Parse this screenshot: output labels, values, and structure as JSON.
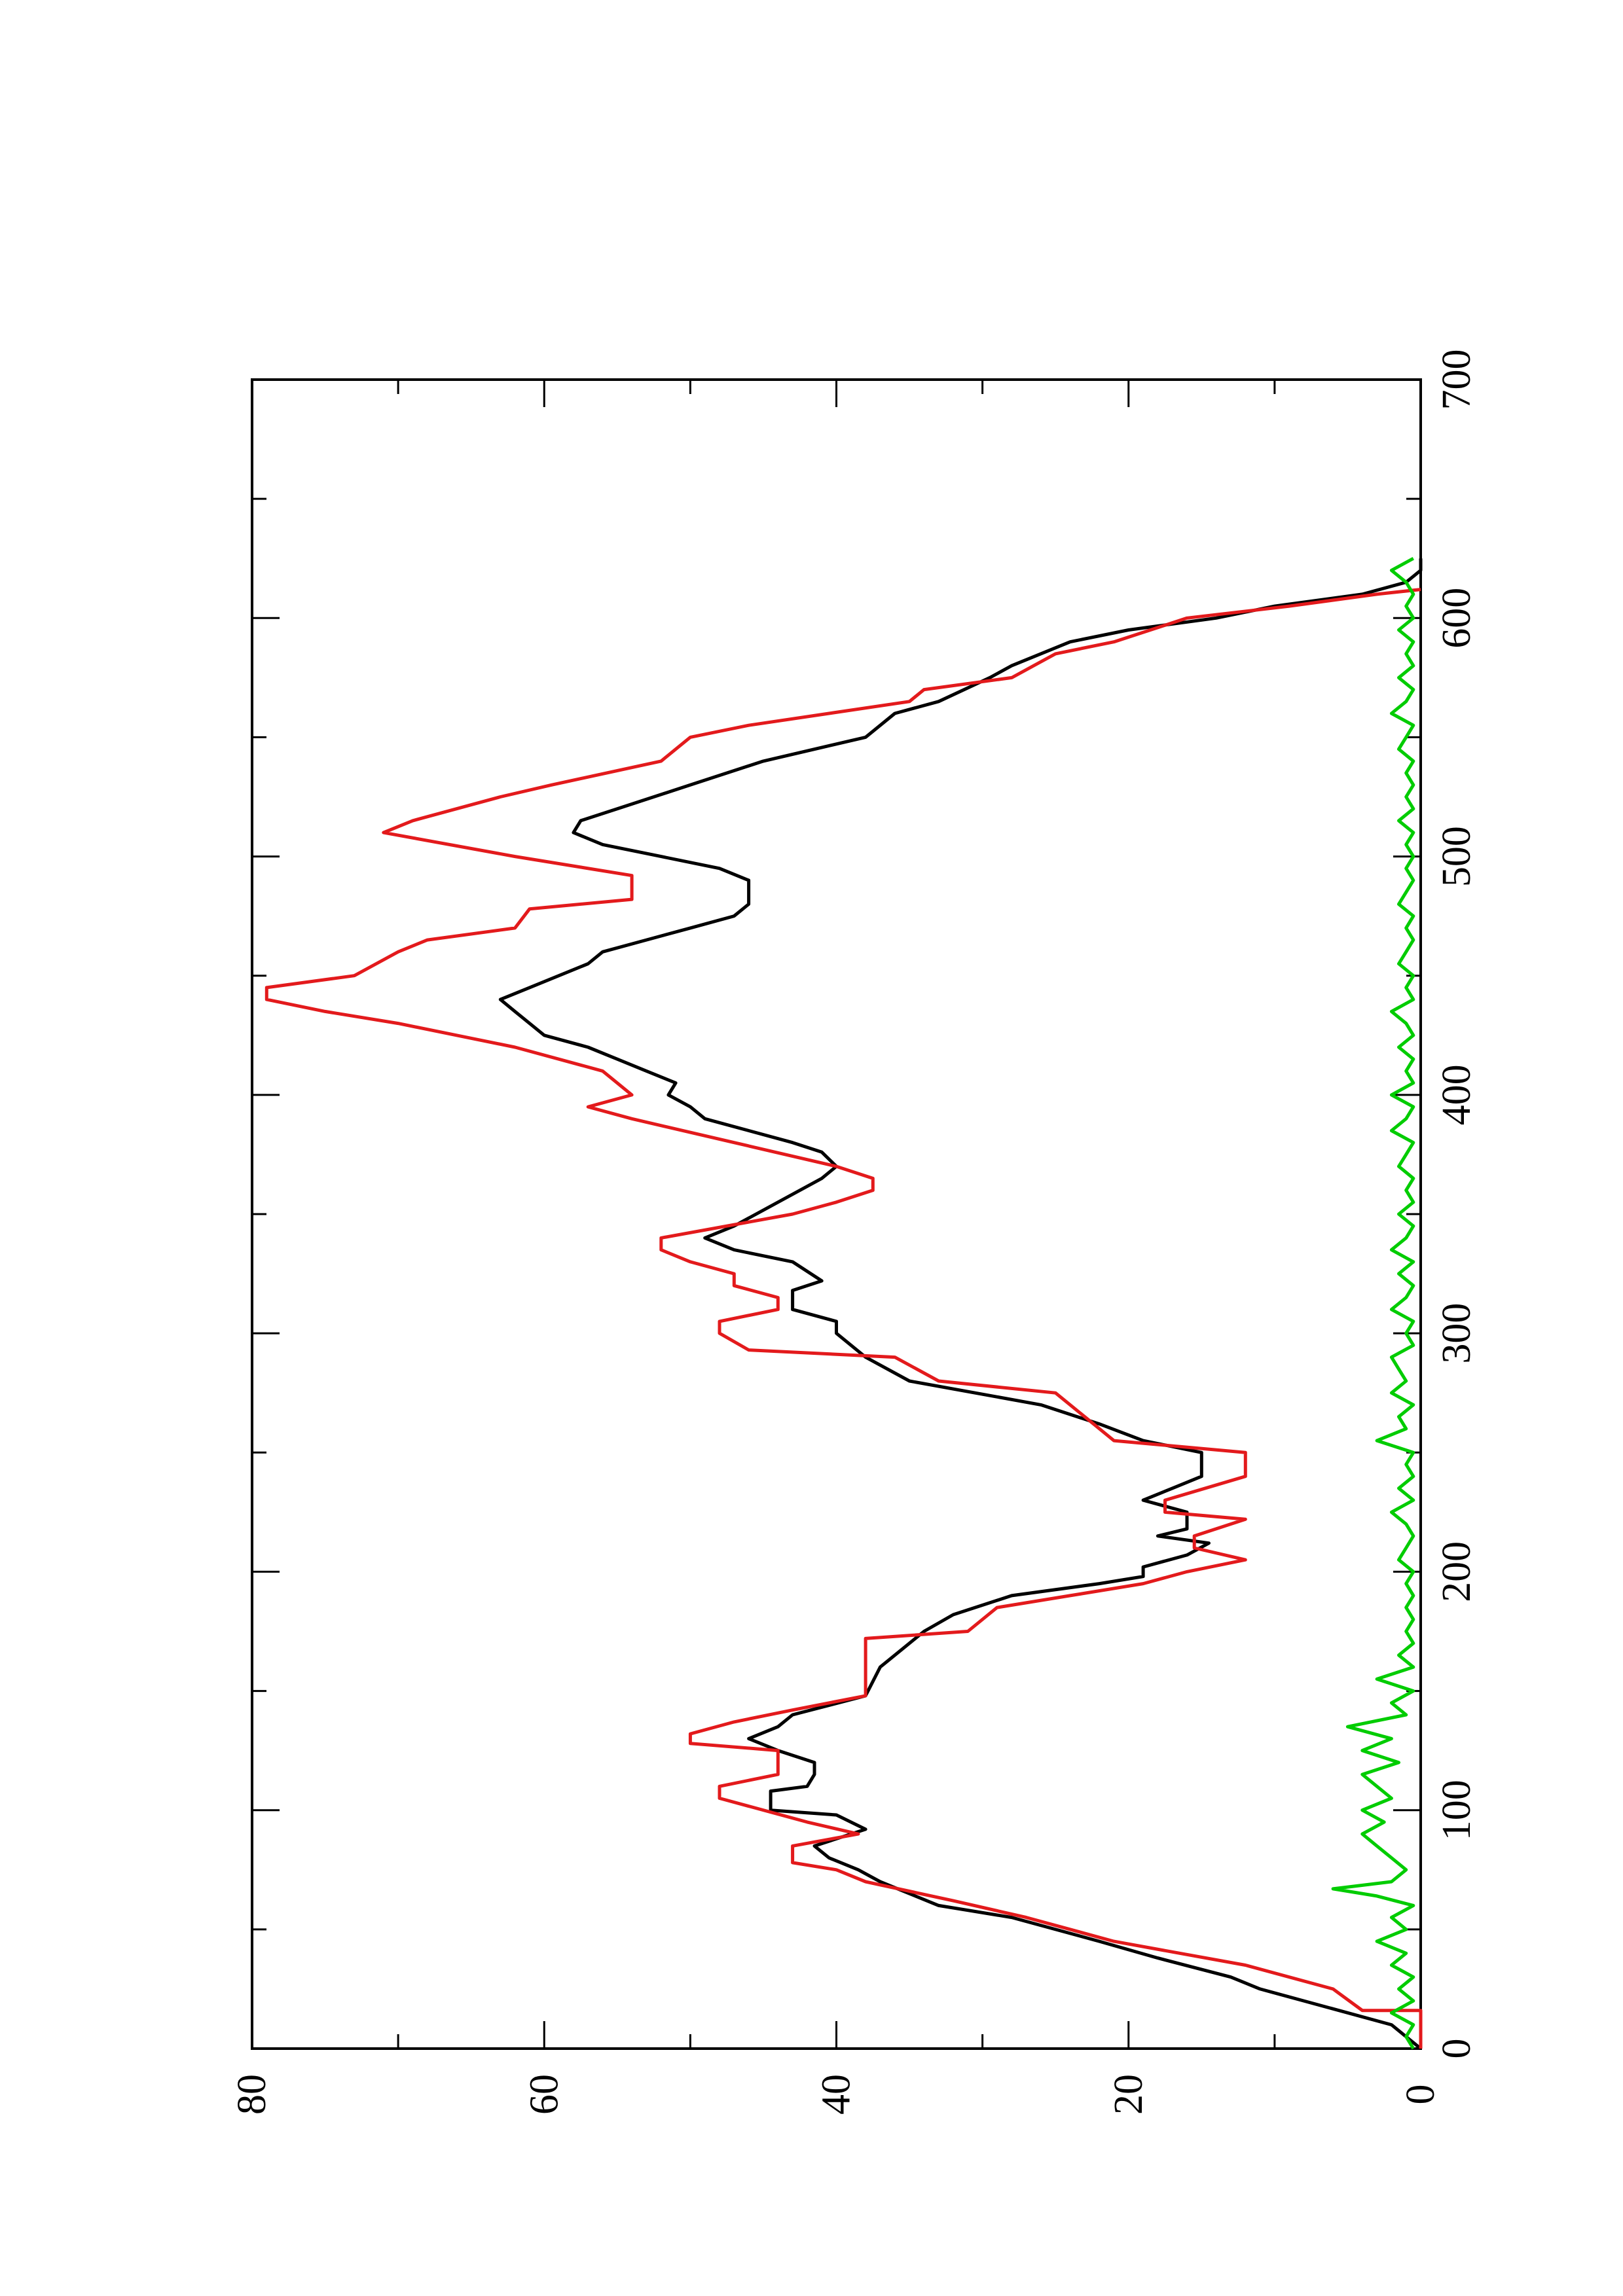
{
  "chart_data": {
    "type": "line",
    "orientation": "rotated 90° counter-clockwise (x axis vertical, y axis horizontal)",
    "title": "",
    "xlabel": "",
    "ylabel": "",
    "xlim": [
      0,
      700
    ],
    "ylim": [
      0,
      80
    ],
    "x_ticks": [
      0,
      100,
      200,
      300,
      400,
      500,
      600,
      700
    ],
    "y_ticks": [
      0,
      20,
      40,
      60,
      80
    ],
    "grid": false,
    "legend": "none",
    "series": [
      {
        "color": "#000000",
        "points": [
          [
            0,
            0
          ],
          [
            10,
            2
          ],
          [
            20,
            8
          ],
          [
            25,
            11
          ],
          [
            30,
            13
          ],
          [
            38,
            18
          ],
          [
            45,
            22
          ],
          [
            55,
            28
          ],
          [
            60,
            33
          ],
          [
            65,
            35
          ],
          [
            70,
            37
          ],
          [
            75,
            38.5
          ],
          [
            80,
            40.5
          ],
          [
            85,
            41.5
          ],
          [
            92,
            38
          ],
          [
            98,
            40
          ],
          [
            100,
            44.5
          ],
          [
            108,
            44.5
          ],
          [
            110,
            42
          ],
          [
            115,
            41.5
          ],
          [
            120,
            41.5
          ],
          [
            125,
            44
          ],
          [
            130,
            46
          ],
          [
            135,
            44
          ],
          [
            140,
            43
          ],
          [
            148,
            38
          ],
          [
            160,
            37
          ],
          [
            170,
            35
          ],
          [
            175,
            34
          ],
          [
            182,
            32
          ],
          [
            190,
            28
          ],
          [
            195,
            22
          ],
          [
            198,
            19
          ],
          [
            202,
            19
          ],
          [
            207,
            16
          ],
          [
            212,
            14.5
          ],
          [
            215,
            18
          ],
          [
            218,
            16
          ],
          [
            225,
            16
          ],
          [
            230,
            19
          ],
          [
            235,
            17
          ],
          [
            240,
            15
          ],
          [
            250,
            15
          ],
          [
            255,
            19
          ],
          [
            262,
            22
          ],
          [
            270,
            26
          ],
          [
            280,
            35
          ],
          [
            290,
            38
          ],
          [
            300,
            40
          ],
          [
            305,
            40
          ],
          [
            310,
            43
          ],
          [
            318,
            43
          ],
          [
            322,
            41
          ],
          [
            330,
            43
          ],
          [
            335,
            47
          ],
          [
            340,
            49
          ],
          [
            345,
            47
          ],
          [
            355,
            44
          ],
          [
            365,
            41
          ],
          [
            370,
            40
          ],
          [
            376,
            41
          ],
          [
            380,
            43
          ],
          [
            390,
            49
          ],
          [
            395,
            50
          ],
          [
            400,
            51.5
          ],
          [
            405,
            51
          ],
          [
            410,
            53
          ],
          [
            415,
            55
          ],
          [
            420,
            57
          ],
          [
            425,
            60
          ],
          [
            430,
            61
          ],
          [
            435,
            62
          ],
          [
            440,
            63
          ],
          [
            445,
            61
          ],
          [
            450,
            59
          ],
          [
            455,
            57
          ],
          [
            460,
            56
          ],
          [
            465,
            53
          ],
          [
            470,
            50
          ],
          [
            475,
            47
          ],
          [
            480,
            46
          ],
          [
            490,
            46
          ],
          [
            495,
            48
          ],
          [
            500,
            52
          ],
          [
            505,
            56
          ],
          [
            510,
            58
          ],
          [
            515,
            57.5
          ],
          [
            520,
            55
          ],
          [
            530,
            50
          ],
          [
            540,
            45
          ],
          [
            550,
            38
          ],
          [
            560,
            36
          ],
          [
            565,
            33
          ],
          [
            575,
            29.5
          ],
          [
            580,
            28
          ],
          [
            590,
            24
          ],
          [
            595,
            20
          ],
          [
            600,
            14
          ],
          [
            605,
            10
          ],
          [
            610,
            4
          ],
          [
            615,
            1
          ],
          [
            620,
            0
          ],
          [
            625,
            0
          ]
        ]
      },
      {
        "color": "#e31a1c",
        "points": [
          [
            0,
            0
          ],
          [
            16,
            0
          ],
          [
            16,
            4
          ],
          [
            25,
            6
          ],
          [
            35,
            12
          ],
          [
            45,
            21
          ],
          [
            55,
            27
          ],
          [
            62,
            32
          ],
          [
            70,
            38
          ],
          [
            75,
            40
          ],
          [
            78,
            43
          ],
          [
            85,
            43
          ],
          [
            90,
            38.5
          ],
          [
            95,
            42
          ],
          [
            105,
            48
          ],
          [
            110,
            48
          ],
          [
            115,
            44
          ],
          [
            125,
            44
          ],
          [
            128,
            50
          ],
          [
            132,
            50
          ],
          [
            137,
            47
          ],
          [
            142,
            43
          ],
          [
            148,
            38
          ],
          [
            172,
            38
          ],
          [
            175,
            31
          ],
          [
            185,
            29
          ],
          [
            190,
            24
          ],
          [
            195,
            19
          ],
          [
            200,
            16
          ],
          [
            205,
            12
          ],
          [
            210,
            15.5
          ],
          [
            215,
            15.5
          ],
          [
            222,
            12
          ],
          [
            225,
            17.5
          ],
          [
            230,
            17.5
          ],
          [
            240,
            12
          ],
          [
            250,
            12
          ],
          [
            255,
            21
          ],
          [
            265,
            23
          ],
          [
            275,
            25
          ],
          [
            280,
            33
          ],
          [
            290,
            36
          ],
          [
            293,
            46
          ],
          [
            300,
            48
          ],
          [
            305,
            48
          ],
          [
            310,
            44
          ],
          [
            315,
            44
          ],
          [
            320,
            47
          ],
          [
            325,
            47
          ],
          [
            330,
            50
          ],
          [
            335,
            52
          ],
          [
            340,
            52
          ],
          [
            350,
            43
          ],
          [
            355,
            40
          ],
          [
            360,
            37.5
          ],
          [
            365,
            37.5
          ],
          [
            370,
            40
          ],
          [
            380,
            47
          ],
          [
            390,
            54
          ],
          [
            395,
            57
          ],
          [
            400,
            54
          ],
          [
            410,
            56
          ],
          [
            420,
            62
          ],
          [
            425,
            66
          ],
          [
            430,
            70
          ],
          [
            435,
            75
          ],
          [
            440,
            79
          ],
          [
            445,
            79
          ],
          [
            450,
            73
          ],
          [
            460,
            70
          ],
          [
            465,
            68
          ],
          [
            470,
            62
          ],
          [
            478,
            61
          ],
          [
            482,
            54
          ],
          [
            492,
            54
          ],
          [
            500,
            62
          ],
          [
            510,
            71
          ],
          [
            515,
            69
          ],
          [
            520,
            66
          ],
          [
            525,
            63
          ],
          [
            530,
            59.5
          ],
          [
            540,
            52
          ],
          [
            550,
            50
          ],
          [
            555,
            46
          ],
          [
            565,
            35
          ],
          [
            570,
            34
          ],
          [
            575,
            28
          ],
          [
            585,
            25
          ],
          [
            590,
            21
          ],
          [
            600,
            16
          ],
          [
            605,
            9
          ],
          [
            610,
            3
          ],
          [
            612,
            0
          ]
        ]
      },
      {
        "color": "#00cc00",
        "points": [
          [
            0,
            0.5
          ],
          [
            5,
            1
          ],
          [
            10,
            0.5
          ],
          [
            15,
            2
          ],
          [
            20,
            0.5
          ],
          [
            25,
            1.5
          ],
          [
            30,
            0.5
          ],
          [
            35,
            2
          ],
          [
            40,
            1
          ],
          [
            45,
            3
          ],
          [
            50,
            1
          ],
          [
            55,
            2
          ],
          [
            60,
            0.5
          ],
          [
            64,
            3
          ],
          [
            67,
            6
          ],
          [
            70,
            2
          ],
          [
            75,
            1
          ],
          [
            80,
            2
          ],
          [
            85,
            3
          ],
          [
            90,
            4
          ],
          [
            95,
            2.5
          ],
          [
            100,
            4
          ],
          [
            105,
            2
          ],
          [
            110,
            3
          ],
          [
            115,
            4
          ],
          [
            120,
            1.5
          ],
          [
            125,
            4
          ],
          [
            130,
            2
          ],
          [
            135,
            5
          ],
          [
            140,
            1
          ],
          [
            145,
            2
          ],
          [
            150,
            0.5
          ],
          [
            155,
            3
          ],
          [
            160,
            0.5
          ],
          [
            165,
            1.5
          ],
          [
            170,
            0.5
          ],
          [
            175,
            1
          ],
          [
            180,
            0.5
          ],
          [
            185,
            1
          ],
          [
            190,
            0.5
          ],
          [
            195,
            1
          ],
          [
            200,
            0.5
          ],
          [
            205,
            1.5
          ],
          [
            210,
            1
          ],
          [
            215,
            0.5
          ],
          [
            220,
            1
          ],
          [
            225,
            2
          ],
          [
            230,
            0.5
          ],
          [
            235,
            1.5
          ],
          [
            240,
            0.5
          ],
          [
            245,
            1
          ],
          [
            250,
            0.5
          ],
          [
            255,
            3
          ],
          [
            260,
            1
          ],
          [
            265,
            1.5
          ],
          [
            270,
            0.5
          ],
          [
            275,
            2
          ],
          [
            280,
            1
          ],
          [
            285,
            1.5
          ],
          [
            290,
            2
          ],
          [
            295,
            0.5
          ],
          [
            300,
            1
          ],
          [
            305,
            0.5
          ],
          [
            310,
            2
          ],
          [
            315,
            1
          ],
          [
            320,
            0.5
          ],
          [
            325,
            1.5
          ],
          [
            330,
            0.5
          ],
          [
            335,
            2
          ],
          [
            340,
            1
          ],
          [
            345,
            0.5
          ],
          [
            350,
            1.5
          ],
          [
            355,
            0.5
          ],
          [
            360,
            1
          ],
          [
            365,
            0.5
          ],
          [
            370,
            1.5
          ],
          [
            375,
            1
          ],
          [
            380,
            0.5
          ],
          [
            385,
            2
          ],
          [
            390,
            1
          ],
          [
            395,
            0.5
          ],
          [
            400,
            2
          ],
          [
            405,
            0.5
          ],
          [
            410,
            1
          ],
          [
            415,
            0.5
          ],
          [
            420,
            1.5
          ],
          [
            425,
            0.5
          ],
          [
            430,
            1
          ],
          [
            435,
            2
          ],
          [
            440,
            0.5
          ],
          [
            445,
            1
          ],
          [
            450,
            0.5
          ],
          [
            455,
            1.5
          ],
          [
            460,
            1
          ],
          [
            465,
            0.5
          ],
          [
            470,
            1
          ],
          [
            475,
            0.5
          ],
          [
            480,
            1.5
          ],
          [
            485,
            1
          ],
          [
            490,
            0.5
          ],
          [
            495,
            1
          ],
          [
            500,
            0.5
          ],
          [
            505,
            1
          ],
          [
            510,
            0.5
          ],
          [
            515,
            1.5
          ],
          [
            520,
            0.5
          ],
          [
            525,
            1
          ],
          [
            530,
            0.5
          ],
          [
            535,
            1
          ],
          [
            540,
            0.5
          ],
          [
            545,
            1.5
          ],
          [
            550,
            1
          ],
          [
            555,
            0.5
          ],
          [
            560,
            2
          ],
          [
            565,
            1
          ],
          [
            570,
            0.5
          ],
          [
            575,
            1.5
          ],
          [
            580,
            0.5
          ],
          [
            585,
            1
          ],
          [
            590,
            0.5
          ],
          [
            595,
            1.5
          ],
          [
            600,
            0.5
          ],
          [
            605,
            1
          ],
          [
            610,
            0.5
          ],
          [
            615,
            1
          ],
          [
            620,
            2
          ],
          [
            625,
            0.5
          ]
        ]
      }
    ]
  }
}
